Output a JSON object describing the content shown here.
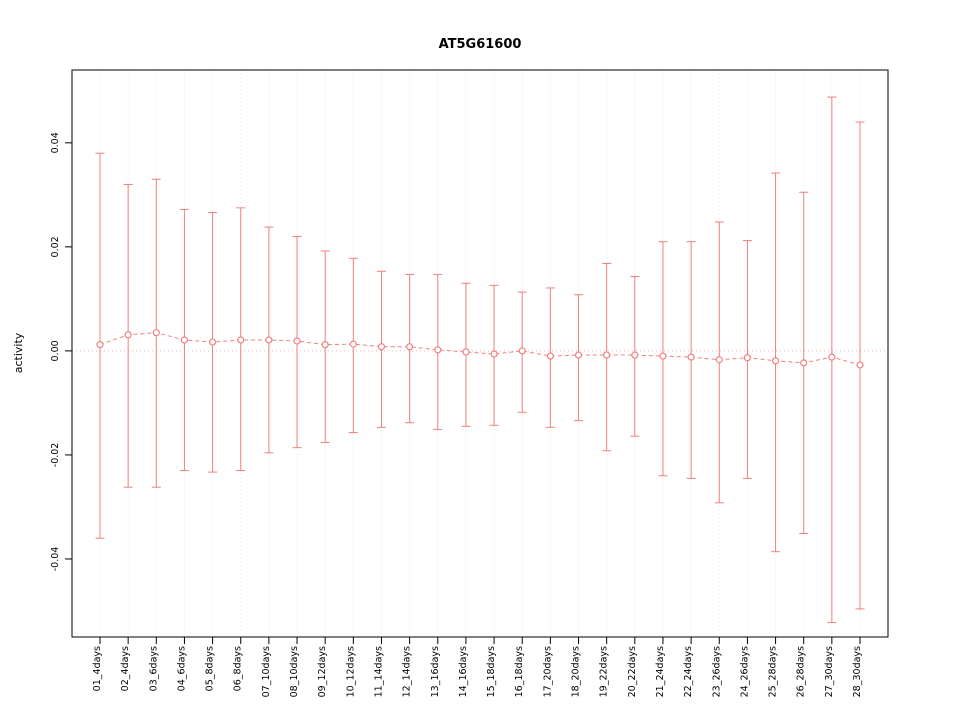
{
  "chart_data": {
    "type": "scatter",
    "subtype": "means-with-error-bars",
    "title": "AT5G61600",
    "xlabel": "",
    "ylabel": "activity",
    "ylim": [
      -0.055,
      0.054
    ],
    "grid": "vertical-dotted",
    "zero_line": true,
    "yticks": [
      {
        "value": -0.04,
        "label": "-0.04"
      },
      {
        "value": -0.02,
        "label": "-0.02"
      },
      {
        "value": 0.0,
        "label": "0.00"
      },
      {
        "value": 0.02,
        "label": "0.02"
      },
      {
        "value": 0.04,
        "label": "0.04"
      }
    ],
    "categories": [
      "01_4days",
      "02_4days",
      "03_6days",
      "04_6days",
      "05_8days",
      "06_8days",
      "07_10days",
      "08_10days",
      "09_12days",
      "10_12days",
      "11_14days",
      "12_14days",
      "13_16days",
      "14_16days",
      "15_18days",
      "16_18days",
      "17_20days",
      "18_20days",
      "19_22days",
      "20_22days",
      "21_24days",
      "22_24days",
      "23_26days",
      "24_26days",
      "25_28days",
      "26_28days",
      "27_30days",
      "28_30days"
    ],
    "series": [
      {
        "name": "mean activity",
        "means": [
          0.0012,
          0.0031,
          0.0035,
          0.0021,
          0.0017,
          0.0021,
          0.0021,
          0.0019,
          0.0012,
          0.0013,
          0.0008,
          0.0008,
          0.0002,
          -0.0002,
          -0.0006,
          0.0,
          -0.001,
          -0.0008,
          -0.0008,
          -0.0008,
          -0.001,
          -0.0012,
          -0.0017,
          -0.0013,
          -0.0019,
          -0.0023,
          -0.0012,
          -0.0027
        ],
        "upper": [
          0.038,
          0.032,
          0.033,
          0.0272,
          0.0266,
          0.0275,
          0.0238,
          0.022,
          0.0192,
          0.0178,
          0.0153,
          0.0147,
          0.0147,
          0.013,
          0.0126,
          0.0113,
          0.0121,
          0.0108,
          0.0168,
          0.0143,
          0.021,
          0.021,
          0.0248,
          0.0212,
          0.0342,
          0.0305,
          0.0488,
          0.044
        ],
        "lower": [
          -0.036,
          -0.0262,
          -0.0262,
          -0.023,
          -0.0233,
          -0.023,
          -0.0196,
          -0.0186,
          -0.0176,
          -0.0157,
          -0.0147,
          -0.0138,
          -0.0151,
          -0.0145,
          -0.0143,
          -0.0118,
          -0.0147,
          -0.0134,
          -0.0192,
          -0.0164,
          -0.024,
          -0.0245,
          -0.0292,
          -0.0245,
          -0.0386,
          -0.0351,
          -0.0522,
          -0.0496
        ]
      }
    ],
    "colors": {
      "series": "#f08080",
      "zero_line": "#f0b8b8",
      "gridline": "#e2e2e2",
      "frame": "#000000"
    },
    "legend": "none"
  }
}
